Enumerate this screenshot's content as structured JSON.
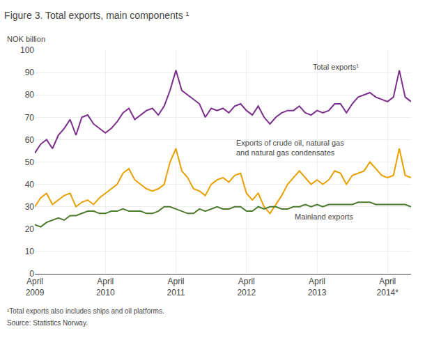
{
  "chart_data": {
    "type": "line",
    "title": "Figure 3. Total exports, main components ¹",
    "y_label": "NOK billion",
    "footnotes": [
      "¹Total exports also includes ships and oil platforms.",
      "Source: Statistics Norway."
    ],
    "categories": [
      "April\n2009",
      null,
      null,
      null,
      null,
      null,
      null,
      null,
      null,
      null,
      null,
      null,
      "April\n2010",
      null,
      null,
      null,
      null,
      null,
      null,
      null,
      null,
      null,
      null,
      null,
      "April\n2011",
      null,
      null,
      null,
      null,
      null,
      null,
      null,
      null,
      null,
      null,
      null,
      "April\n2012",
      null,
      null,
      null,
      null,
      null,
      null,
      null,
      null,
      null,
      null,
      null,
      "April\n2013",
      null,
      null,
      null,
      null,
      null,
      null,
      null,
      null,
      null,
      null,
      null,
      "April\n2014*",
      null,
      null,
      null,
      null
    ],
    "series": [
      {
        "name": "Total exports¹",
        "color": "#7B2D8B",
        "values": [
          54,
          58,
          60,
          56,
          62,
          65,
          69,
          62,
          70,
          71,
          67,
          65,
          63,
          65,
          68,
          72,
          74,
          69,
          71,
          73,
          74,
          71,
          75,
          82,
          91,
          82,
          80,
          78,
          76,
          70,
          74,
          73,
          74,
          72,
          75,
          76,
          73,
          71,
          75,
          70,
          67,
          70,
          72,
          73,
          73,
          75,
          72,
          71,
          73,
          72,
          73,
          76,
          76,
          72,
          76,
          79,
          80,
          81,
          79,
          78,
          77,
          79,
          91,
          79,
          77
        ]
      },
      {
        "name": "Exports of crude oil, natural gas\nand natural gas condensates",
        "color": "#E8A000",
        "values": [
          30,
          34,
          36,
          31,
          33,
          35,
          36,
          30,
          32,
          33,
          31,
          34,
          36,
          38,
          40,
          45,
          47,
          42,
          40,
          38,
          37,
          38,
          40,
          50,
          56,
          46,
          43,
          38,
          37,
          35,
          40,
          42,
          43,
          41,
          44,
          45,
          36,
          33,
          36,
          30,
          27,
          31,
          35,
          40,
          43,
          46,
          43,
          40,
          42,
          40,
          42,
          46,
          45,
          40,
          44,
          45,
          46,
          50,
          47,
          44,
          43,
          44,
          56,
          44,
          43
        ]
      },
      {
        "name": "Mainland exports",
        "color": "#4A7A2B",
        "values": [
          22,
          21,
          23,
          24,
          25,
          24,
          26,
          26,
          27,
          28,
          28,
          27,
          27,
          28,
          28,
          29,
          28,
          28,
          28,
          27,
          27,
          28,
          30,
          30,
          29,
          28,
          27,
          27,
          29,
          28,
          29,
          30,
          29,
          29,
          30,
          30,
          28,
          28,
          30,
          29,
          30,
          30,
          29,
          29,
          30,
          30,
          31,
          30,
          31,
          30,
          31,
          31,
          31,
          31,
          31,
          32,
          32,
          32,
          31,
          31,
          31,
          31,
          31,
          31,
          30
        ]
      }
    ],
    "annotations": [
      {
        "text": "Total exports¹",
        "x": 47,
        "y": 95
      },
      {
        "text": "Exports of crude oil, natural gas\nand natural gas condensates",
        "x": 34,
        "y": 61
      },
      {
        "text": "Mainland exports",
        "x": 44,
        "y": 28
      }
    ],
    "ylim": [
      0,
      100
    ],
    "yticks": [
      0,
      10,
      20,
      30,
      40,
      50,
      60,
      70,
      80,
      90,
      100
    ],
    "grid": true
  }
}
